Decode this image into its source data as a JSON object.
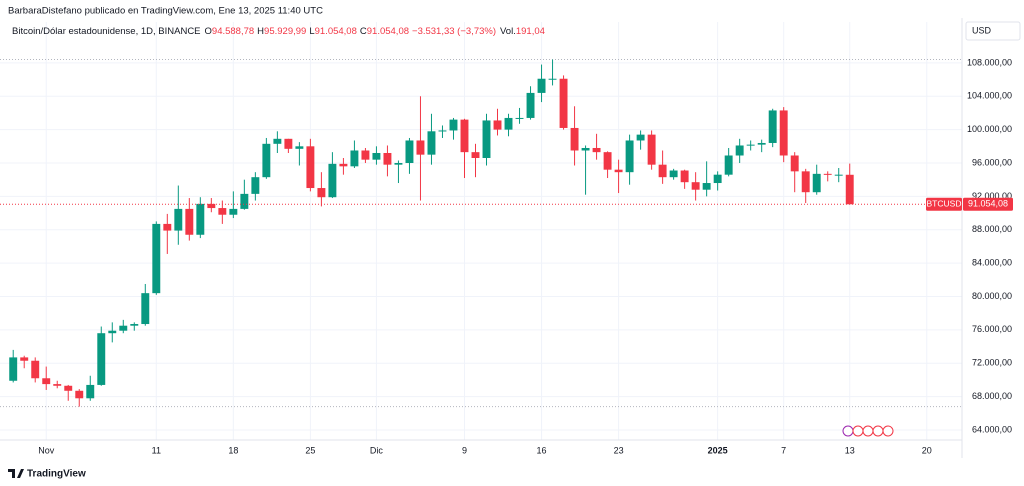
{
  "header": {
    "byline": "BarbaraDistefano publicado en TradingView.com, Ene 13, 2025 11:40 UTC",
    "symbol": "Bitcoin/Dólar estadounidense, 1D, BINANCE",
    "ohlc": [
      {
        "key": "O",
        "value": "94.588,78"
      },
      {
        "key": "H",
        "value": "95.929,99"
      },
      {
        "key": "L",
        "value": "91.054,08"
      },
      {
        "key": "C",
        "value": "91.054,08"
      }
    ],
    "change": "−3.531,33 (−3,73%)",
    "volume_key": "Vol.",
    "volume": "191,04"
  },
  "currency": "USD",
  "brand": "TradingView",
  "chart_data": {
    "type": "candlestick",
    "xlim": [
      -1.2,
      86.2
    ],
    "xticks": [
      {
        "value": 3,
        "label": "Nov"
      },
      {
        "value": 13,
        "label": "11"
      },
      {
        "value": 20,
        "label": "18"
      },
      {
        "value": 27,
        "label": "25"
      },
      {
        "value": 33,
        "label": "Dic"
      },
      {
        "value": 41,
        "label": "9"
      },
      {
        "value": 48,
        "label": "16"
      },
      {
        "value": 55,
        "label": "23"
      },
      {
        "value": 64,
        "label": "2025"
      },
      {
        "value": 70,
        "label": "7"
      },
      {
        "value": 76,
        "label": "13"
      },
      {
        "value": 83,
        "label": "20"
      }
    ],
    "ylim": [
      62800,
      112900
    ],
    "yticks": [
      {
        "value": 64000,
        "label": "64.000,00"
      },
      {
        "value": 68000,
        "label": "68.000,00"
      },
      {
        "value": 72000,
        "label": "72.000,00"
      },
      {
        "value": 76000,
        "label": "76.000,00"
      },
      {
        "value": 80000,
        "label": "80.000,00"
      },
      {
        "value": 84000,
        "label": "84.000,00"
      },
      {
        "value": 88000,
        "label": "88.000,00"
      },
      {
        "value": 92000,
        "label": "92.000,00"
      },
      {
        "value": 96000,
        "label": "96.000,00"
      },
      {
        "value": 100000,
        "label": "100.000,00"
      },
      {
        "value": 104000,
        "label": "104.000,00"
      },
      {
        "value": 108000,
        "label": "108.000,00"
      }
    ],
    "grid": true,
    "series": [
      {
        "name": "BTCUSD",
        "up_color": "#089981",
        "down_color": "#f23645",
        "last_value_label": "91.054,08",
        "open": [
          69900,
          72700,
          72300,
          70200,
          69500,
          69300,
          68700,
          67800,
          69400,
          75600,
          75900,
          76500,
          76700,
          80400,
          88700,
          87900,
          90500,
          87400,
          91100,
          90600,
          89800,
          90500,
          92300,
          94300,
          98300,
          98900,
          97700,
          98000,
          93000,
          91900,
          95900,
          95600,
          97500,
          96400,
          97200,
          95800,
          96000,
          98700,
          97000,
          99800,
          99900,
          101200,
          97300,
          96600,
          101100,
          100000,
          101400,
          101400,
          104400,
          106100,
          106100,
          100200,
          97500,
          97800,
          97300,
          95200,
          94900,
          98700,
          99400,
          95800,
          94300,
          95100,
          93700,
          92800,
          93600,
          94600,
          96900,
          98100,
          98200,
          98400,
          102300,
          96900,
          95000,
          92500,
          94700,
          94600,
          94588.78
        ],
        "high": [
          73600,
          72900,
          72700,
          71600,
          69900,
          69400,
          68900,
          70500,
          76400,
          76900,
          77200,
          76900,
          81500,
          89000,
          89900,
          93300,
          91800,
          91900,
          91800,
          91500,
          92600,
          94000,
          94900,
          99000,
          99800,
          98900,
          98500,
          98900,
          94900,
          97300,
          96600,
          98700,
          97800,
          98000,
          98100,
          96300,
          99000,
          104000,
          101900,
          100500,
          101400,
          101300,
          98300,
          101900,
          102500,
          101900,
          102600,
          105200,
          107800,
          108400,
          106500,
          102800,
          98100,
          99500,
          97400,
          96400,
          99400,
          99900,
          99900,
          97500,
          95300,
          95200,
          94900,
          96200,
          95000,
          97800,
          98900,
          98700,
          98800,
          102500,
          102700,
          97300,
          95300,
          95800,
          95000,
          95400,
          95929.99
        ],
        "low": [
          69700,
          71400,
          69700,
          68800,
          69000,
          67500,
          66800,
          67500,
          69300,
          74500,
          75600,
          75900,
          76500,
          80200,
          85100,
          86200,
          86700,
          87000,
          90100,
          88700,
          89400,
          90400,
          91500,
          94100,
          97200,
          97200,
          95700,
          92600,
          90800,
          91800,
          94600,
          95400,
          96000,
          95800,
          94400,
          93600,
          94700,
          91500,
          95800,
          99000,
          98800,
          94200,
          94300,
          95700,
          99300,
          99200,
          100700,
          101200,
          103300,
          105300,
          100000,
          95700,
          92200,
          96400,
          94200,
          92400,
          93400,
          97600,
          95200,
          93500,
          94000,
          92900,
          91500,
          92000,
          92700,
          94400,
          96000,
          97500,
          97300,
          97900,
          96100,
          92500,
          91200,
          92200,
          93800,
          93700,
          91054.08
        ],
        "close": [
          72700,
          72300,
          70200,
          69500,
          69300,
          68700,
          67800,
          69400,
          75600,
          75900,
          76500,
          76700,
          80400,
          88700,
          87900,
          90500,
          87400,
          91100,
          90600,
          89800,
          90500,
          92300,
          94300,
          98300,
          98900,
          97700,
          98000,
          93000,
          91900,
          95900,
          95600,
          97500,
          96400,
          97200,
          95800,
          96000,
          98700,
          97000,
          99800,
          99900,
          101200,
          97300,
          96600,
          101100,
          100000,
          101400,
          101400,
          104400,
          106100,
          106100,
          100200,
          97500,
          97800,
          97300,
          95200,
          94900,
          98700,
          99400,
          95800,
          94300,
          95100,
          93700,
          92800,
          93600,
          94600,
          96900,
          98100,
          98200,
          98400,
          102300,
          96900,
          95000,
          92500,
          94700,
          94600,
          94600,
          91054.08
        ]
      }
    ]
  }
}
